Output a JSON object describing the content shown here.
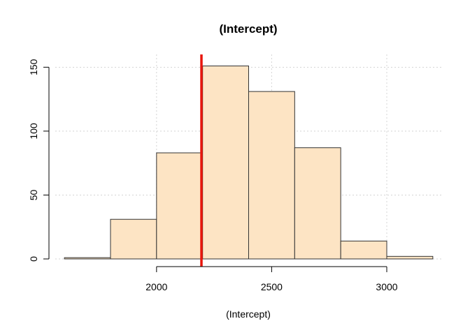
{
  "chart_data": {
    "type": "bar",
    "title": "(Intercept)",
    "xlabel": "(Intercept)",
    "ylabel": "",
    "bins": [
      {
        "x0": 1600,
        "x1": 1800,
        "count": 1
      },
      {
        "x0": 1800,
        "x1": 2000,
        "count": 31
      },
      {
        "x0": 2000,
        "x1": 2200,
        "count": 83
      },
      {
        "x0": 2200,
        "x1": 2400,
        "count": 151
      },
      {
        "x0": 2400,
        "x1": 2600,
        "count": 131
      },
      {
        "x0": 2600,
        "x1": 2800,
        "count": 87
      },
      {
        "x0": 2800,
        "x1": 3000,
        "count": 14
      },
      {
        "x0": 3000,
        "x1": 3200,
        "count": 2
      }
    ],
    "xticks": [
      2000,
      2500,
      3000
    ],
    "yticks": [
      0,
      50,
      100,
      150
    ],
    "xlim": [
      1560,
      3240
    ],
    "ylim": [
      0,
      160
    ],
    "vline": {
      "x": 2195,
      "color": "#e8160c"
    },
    "grid": true,
    "bar_fill": "#fde4c4",
    "bar_stroke": "#333333",
    "grid_color": "#d4d4d4"
  }
}
